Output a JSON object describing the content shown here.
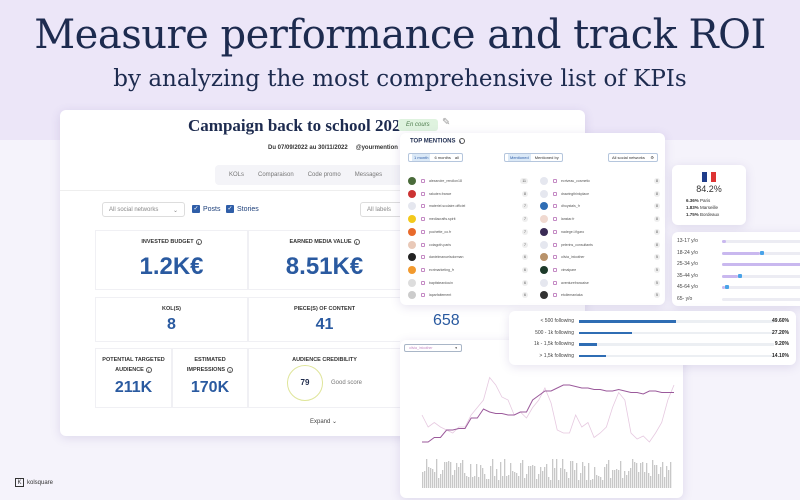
{
  "headline": "Measure performance and track ROI",
  "subheadline": "by analyzing the most comprehensive list of KPIs",
  "campaign": {
    "title": "Campaign back to school 2022",
    "status": "En cours",
    "dates": "Du 07/09/2022 au 30/11/2022",
    "mention": "@yourmention",
    "tabs": [
      "KOLs",
      "Comparaison",
      "Code promo",
      "Messages"
    ],
    "filters": {
      "network": "All social networks",
      "posts": "Posts",
      "stories": "Stories",
      "labels": "All labels"
    },
    "kpis": {
      "budget": {
        "label": "INVESTED BUDGET",
        "value": "1.2K€"
      },
      "emv": {
        "label": "EARNED MEDIA VALUE",
        "value": "8.51K€"
      },
      "kols": {
        "label": "KOL(S)",
        "value": "8"
      },
      "content": {
        "label": "PIECE(S) OF CONTENT",
        "value": "41"
      },
      "audience": {
        "label": "POTENTIAL TARGETED AUDIENCE",
        "value": "211K"
      },
      "impressions": {
        "label": "ESTIMATED IMPRESSIONS",
        "value": "170K"
      },
      "credibility": {
        "label": "AUDIENCE CREDIBILITY",
        "value": "79",
        "note": "Good score"
      }
    },
    "expand": "Expand",
    "extra_value": "658"
  },
  "mentions": {
    "title": "TOP MENTIONS",
    "periods": [
      "1 month",
      "6 months",
      "all"
    ],
    "modes": [
      "Mentioned",
      "Mentioned by"
    ],
    "network": "All social networks",
    "left": [
      {
        "name": "alexandre_rendlon18",
        "count": "11",
        "color": "#4a6b3a"
      },
      {
        "name": "rakuten.france",
        "count": "8",
        "color": "#c33"
      },
      {
        "name": "materiel.scolaire.officiel",
        "count": "7",
        "color": "#e5e7ef"
      },
      {
        "name": "mediacrafts.spirit",
        "count": "7",
        "color": "#f3c91b"
      },
      {
        "name": "pochette_co.fr",
        "count": "7",
        "color": "#e86a2b"
      },
      {
        "name": "cotagoth.paris",
        "count": "7",
        "color": "#e9c9b8"
      },
      {
        "name": "danielmanuelsdorman",
        "count": "6",
        "color": "#222"
      },
      {
        "name": "ecrimarketing_fr",
        "count": "6",
        "color": "#f29a2e"
      },
      {
        "name": "baptisteardouin",
        "count": "6",
        "color": "#ddd"
      },
      {
        "name": "laparfaitement",
        "count": "6",
        "color": "#ccc"
      }
    ],
    "right": [
      {
        "name": "ecriveau_cosmetic",
        "count": "8",
        "color": "#e5e7ef"
      },
      {
        "name": "drawingthinkplace",
        "count": "8",
        "color": "#e5e7ef"
      },
      {
        "name": "dhoystals_fr",
        "count": "8",
        "color": "#2f6db4"
      },
      {
        "name": "lanstar.fr",
        "count": "8",
        "color": "#f0d9d0"
      },
      {
        "name": "nadege.l.figaro",
        "count": "8",
        "color": "#3a2b55"
      },
      {
        "name": "pelerins_consultants",
        "count": "8",
        "color": "#e5e7ef"
      },
      {
        "name": "olivia_intoother",
        "count": "5",
        "color": "#b8926a"
      },
      {
        "name": "vimalpare",
        "count": "5",
        "color": "#1d3a2a"
      },
      {
        "name": "aventurefrancaise",
        "count": "5",
        "color": "#e5e7ef"
      },
      {
        "name": "etoilemaniaka",
        "count": "5",
        "color": "#333"
      }
    ]
  },
  "country": {
    "main": "84.2%",
    "cities": [
      {
        "pct": "6.36%",
        "name": "Paris"
      },
      {
        "pct": "1.83%",
        "name": "Marseille"
      },
      {
        "pct": "1.75%",
        "name": "Bordeaux"
      }
    ]
  },
  "ages": [
    {
      "label": "13-17 y/o",
      "fill": 0.04
    },
    {
      "label": "18-24 y/o",
      "fill": 0.42,
      "marker": 0.42
    },
    {
      "label": "25-34 y/o",
      "fill": 1.0
    },
    {
      "label": "35-44 y/o",
      "fill": 0.18,
      "marker": 0.18
    },
    {
      "label": "45-64 y/o",
      "fill": 0.03,
      "marker": 0.03
    },
    {
      "label": "65- y/o",
      "fill": 0
    }
  ],
  "following": [
    {
      "label": "< 500 following",
      "pct": "49.60%",
      "value": 49.6
    },
    {
      "label": "500 - 1k following",
      "pct": "27.20%",
      "value": 27.2
    },
    {
      "label": "1k - 1,5k following",
      "pct": "9.20%",
      "value": 9.2
    },
    {
      "label": "> 1,5k following",
      "pct": "14.10%",
      "value": 14.1
    }
  ],
  "chart": {
    "account": "olivia_intoother",
    "colors": {
      "main": "#9b5a9b",
      "secondary": "#e6c9e0",
      "bars": "#c8c8c8"
    },
    "main_line": [
      2,
      2,
      5,
      5,
      10,
      10,
      11,
      11,
      18,
      18,
      24,
      22,
      21,
      21,
      20,
      20,
      22,
      22,
      30,
      33,
      36,
      36,
      38,
      40,
      40,
      39,
      38,
      38,
      37,
      37,
      36,
      36,
      37,
      36,
      35,
      35,
      34,
      36,
      36,
      35,
      35,
      35
    ],
    "secondary_line": [
      20,
      12,
      15,
      12,
      10,
      8,
      12,
      12,
      20,
      25,
      30,
      45,
      40,
      32,
      30,
      20,
      22,
      18,
      25,
      30,
      38,
      28,
      10,
      8,
      8,
      20,
      12,
      15,
      5,
      8,
      12,
      25,
      35,
      30,
      8,
      4,
      6,
      2,
      8,
      15,
      30,
      40
    ]
  },
  "brand": "kolsquare"
}
